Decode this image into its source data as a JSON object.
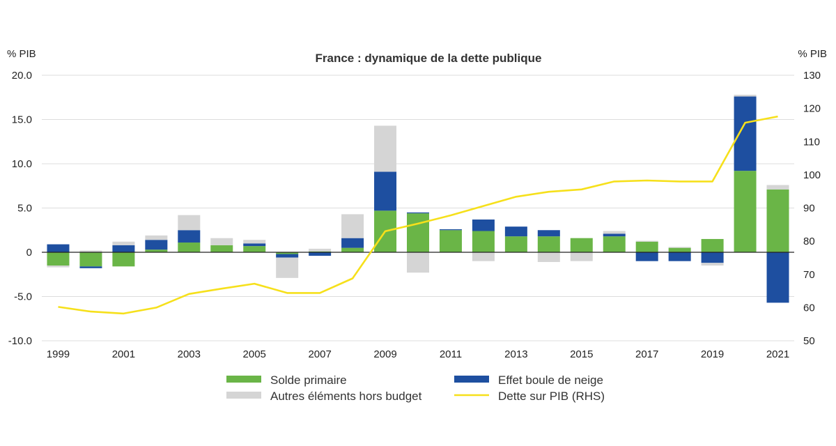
{
  "chart_data": {
    "type": "bar",
    "title": "France : dynamique de la dette publique",
    "y_left_unit": "% PIB",
    "y_right_unit": "% PIB",
    "ylim": [
      -10,
      20
    ],
    "y_ticks": [
      "20.0",
      "15.0",
      "10.0",
      "5.0",
      "0",
      "-5.0",
      "-10.0"
    ],
    "y_tick_values": [
      20,
      15,
      10,
      5,
      0,
      -5,
      -10
    ],
    "y2lim": [
      50,
      130
    ],
    "y2_ticks": [
      "130",
      "120",
      "110",
      "100",
      "90",
      "80",
      "70",
      "60",
      "50"
    ],
    "y2_tick_values": [
      130,
      120,
      110,
      100,
      90,
      80,
      70,
      60,
      50
    ],
    "categories": [
      "1999",
      "2000",
      "2001",
      "2002",
      "2003",
      "2004",
      "2005",
      "2006",
      "2007",
      "2008",
      "2009",
      "2010",
      "2011",
      "2012",
      "2013",
      "2014",
      "2015",
      "2016",
      "2017",
      "2018",
      "2019",
      "2020",
      "2021"
    ],
    "x_tick_labels": [
      "1999",
      "2001",
      "2003",
      "2005",
      "2007",
      "2009",
      "2011",
      "2013",
      "2015",
      "2017",
      "2019",
      "2021"
    ],
    "x_tick_years": [
      1999,
      2001,
      2003,
      2005,
      2007,
      2009,
      2011,
      2013,
      2015,
      2017,
      2019,
      2021
    ],
    "grid": true,
    "legend_position": "bottom",
    "series": [
      {
        "name": "Solde primaire",
        "kind": "bar",
        "color": "#6ab547",
        "values": [
          -1.5,
          -1.6,
          -1.6,
          0.3,
          1.1,
          0.8,
          0.7,
          -0.2,
          0.1,
          0.5,
          4.7,
          4.4,
          2.5,
          2.4,
          1.8,
          1.8,
          1.6,
          1.8,
          1.2,
          0.5,
          1.5,
          9.2,
          7.1
        ]
      },
      {
        "name": "Effet boule de neige",
        "kind": "bar",
        "color": "#1e4fa0",
        "values": [
          0.9,
          -0.2,
          0.8,
          1.1,
          1.4,
          0.0,
          0.3,
          -0.4,
          -0.4,
          1.1,
          4.4,
          0.1,
          0.1,
          1.3,
          1.1,
          0.7,
          0.0,
          0.3,
          -1.0,
          -1.0,
          -1.2,
          8.4,
          -5.7
        ]
      },
      {
        "name": "Autres éléments hors budget",
        "kind": "bar",
        "color": "#d5d5d5",
        "values": [
          -0.2,
          0.2,
          0.4,
          0.5,
          1.7,
          0.8,
          0.4,
          -2.3,
          0.3,
          2.7,
          5.2,
          -2.3,
          0.0,
          -1.0,
          0.0,
          -1.1,
          -1.0,
          0.3,
          0.1,
          0.1,
          -0.3,
          0.2,
          0.5
        ]
      },
      {
        "name": "Dette sur PIB (RHS)",
        "kind": "line",
        "axis": "right",
        "color": "#f6e01b",
        "values": [
          60.2,
          58.8,
          58.2,
          60.0,
          64.1,
          65.7,
          67.2,
          64.4,
          64.4,
          68.8,
          83.0,
          85.3,
          87.8,
          90.6,
          93.4,
          94.9,
          95.6,
          98.0,
          98.3,
          98.0,
          98.0,
          115.7,
          117.6
        ]
      }
    ]
  }
}
